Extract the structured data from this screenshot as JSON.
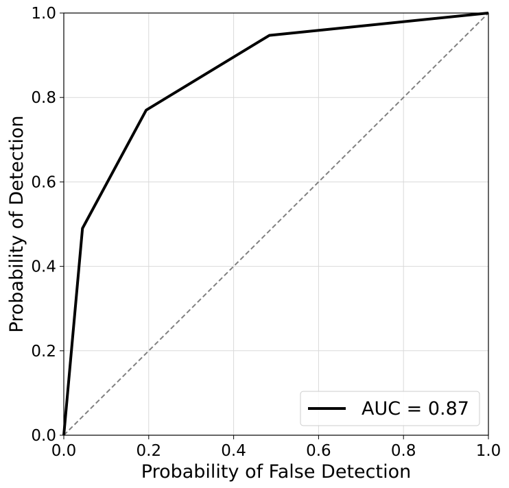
{
  "chart_data": {
    "type": "line",
    "title": "",
    "xlabel": "Probability of False Detection",
    "ylabel": "Probability of Detection",
    "xlim": [
      0.0,
      1.0
    ],
    "ylim": [
      0.0,
      1.0
    ],
    "xticks": [
      "0.0",
      "0.2",
      "0.4",
      "0.6",
      "0.8",
      "1.0"
    ],
    "yticks": [
      "0.0",
      "0.2",
      "0.4",
      "0.6",
      "0.8",
      "1.0"
    ],
    "grid": true,
    "legend_position": "lower-right",
    "series": [
      {
        "name": "AUC = 0.87",
        "color": "#000000",
        "style": "solid",
        "x": [
          0.0,
          0.044,
          0.194,
          0.484,
          1.0
        ],
        "y": [
          0.0,
          0.49,
          0.77,
          0.947,
          1.0
        ]
      }
    ],
    "reference_line": {
      "color": "#808080",
      "style": "dashed",
      "x": [
        0.0,
        1.0
      ],
      "y": [
        0.0,
        1.0
      ]
    }
  }
}
